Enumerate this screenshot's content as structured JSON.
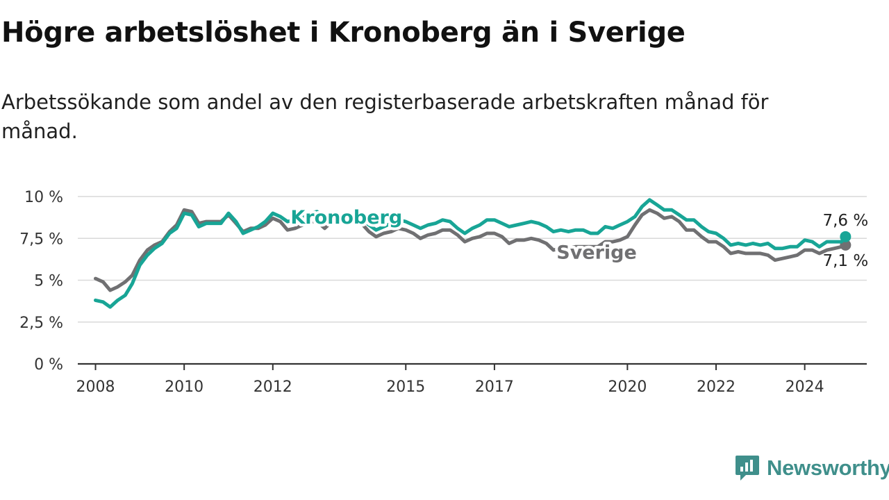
{
  "header": {
    "title": "Högre arbetslöshet i Kronoberg än i Sverige",
    "subtitle": "Arbetssökande som andel av den registerbaserade arbetskraften månad för månad."
  },
  "brand": {
    "name": "Newsworthy",
    "icon": "newsworthy-logo-icon",
    "color": "#3f8f8b"
  },
  "chart_data": {
    "type": "line",
    "title": "Högre arbetslöshet i Kronoberg än i Sverige",
    "subtitle": "Arbetssökande som andel av den registerbaserade arbetskraften månad för månad.",
    "xlabel": "",
    "ylabel": "",
    "xlim": [
      2007.6,
      2025.4
    ],
    "ylim": [
      0,
      10
    ],
    "grid": true,
    "x_ticks": [
      {
        "value": 2008,
        "label": "2008"
      },
      {
        "value": 2010,
        "label": "2010"
      },
      {
        "value": 2012,
        "label": "2012"
      },
      {
        "value": 2015,
        "label": "2015"
      },
      {
        "value": 2017,
        "label": "2017"
      },
      {
        "value": 2020,
        "label": "2020"
      },
      {
        "value": 2022,
        "label": "2022"
      },
      {
        "value": 2024,
        "label": "2024"
      }
    ],
    "y_ticks": [
      {
        "value": 0,
        "label": "0 %"
      },
      {
        "value": 2.5,
        "label": "2,5 %"
      },
      {
        "value": 5,
        "label": "5 %"
      },
      {
        "value": 7.5,
        "label": "7,5 %"
      },
      {
        "value": 10,
        "label": "10 %"
      }
    ],
    "series": [
      {
        "name": "Kronoberg",
        "color": "#18a596",
        "end_label": "7,6 %",
        "points": [
          [
            2008.0,
            3.8
          ],
          [
            2008.17,
            3.7
          ],
          [
            2008.33,
            3.4
          ],
          [
            2008.5,
            3.8
          ],
          [
            2008.67,
            4.1
          ],
          [
            2008.83,
            4.8
          ],
          [
            2009.0,
            5.9
          ],
          [
            2009.17,
            6.5
          ],
          [
            2009.33,
            6.9
          ],
          [
            2009.5,
            7.2
          ],
          [
            2009.67,
            7.8
          ],
          [
            2009.83,
            8.1
          ],
          [
            2010.0,
            9.0
          ],
          [
            2010.17,
            8.9
          ],
          [
            2010.33,
            8.2
          ],
          [
            2010.5,
            8.4
          ],
          [
            2010.67,
            8.4
          ],
          [
            2010.83,
            8.4
          ],
          [
            2011.0,
            9.0
          ],
          [
            2011.17,
            8.5
          ],
          [
            2011.33,
            7.8
          ],
          [
            2011.5,
            8.0
          ],
          [
            2011.67,
            8.2
          ],
          [
            2011.83,
            8.5
          ],
          [
            2012.0,
            9.0
          ],
          [
            2012.17,
            8.8
          ],
          [
            2012.33,
            8.5
          ],
          [
            2012.5,
            8.6
          ],
          [
            2012.67,
            8.8
          ],
          [
            2012.83,
            9.0
          ],
          [
            2013.0,
            9.1
          ],
          [
            2013.17,
            8.8
          ],
          [
            2013.33,
            8.7
          ],
          [
            2013.5,
            8.8
          ],
          [
            2013.67,
            8.8
          ],
          [
            2013.83,
            8.8
          ],
          [
            2014.0,
            8.7
          ],
          [
            2014.17,
            8.3
          ],
          [
            2014.33,
            8.0
          ],
          [
            2014.5,
            8.2
          ],
          [
            2014.67,
            8.4
          ],
          [
            2014.83,
            8.6
          ],
          [
            2015.0,
            8.5
          ],
          [
            2015.17,
            8.3
          ],
          [
            2015.33,
            8.1
          ],
          [
            2015.5,
            8.3
          ],
          [
            2015.67,
            8.4
          ],
          [
            2015.83,
            8.6
          ],
          [
            2016.0,
            8.5
          ],
          [
            2016.17,
            8.1
          ],
          [
            2016.33,
            7.8
          ],
          [
            2016.5,
            8.1
          ],
          [
            2016.67,
            8.3
          ],
          [
            2016.83,
            8.6
          ],
          [
            2017.0,
            8.6
          ],
          [
            2017.17,
            8.4
          ],
          [
            2017.33,
            8.2
          ],
          [
            2017.5,
            8.3
          ],
          [
            2017.67,
            8.4
          ],
          [
            2017.83,
            8.5
          ],
          [
            2018.0,
            8.4
          ],
          [
            2018.17,
            8.2
          ],
          [
            2018.33,
            7.9
          ],
          [
            2018.5,
            8.0
          ],
          [
            2018.67,
            7.9
          ],
          [
            2018.83,
            8.0
          ],
          [
            2019.0,
            8.0
          ],
          [
            2019.17,
            7.8
          ],
          [
            2019.33,
            7.8
          ],
          [
            2019.5,
            8.2
          ],
          [
            2019.67,
            8.1
          ],
          [
            2019.83,
            8.3
          ],
          [
            2020.0,
            8.5
          ],
          [
            2020.17,
            8.8
          ],
          [
            2020.33,
            9.4
          ],
          [
            2020.5,
            9.8
          ],
          [
            2020.67,
            9.5
          ],
          [
            2020.83,
            9.2
          ],
          [
            2021.0,
            9.2
          ],
          [
            2021.17,
            8.9
          ],
          [
            2021.33,
            8.6
          ],
          [
            2021.5,
            8.6
          ],
          [
            2021.67,
            8.2
          ],
          [
            2021.83,
            7.9
          ],
          [
            2022.0,
            7.8
          ],
          [
            2022.17,
            7.5
          ],
          [
            2022.33,
            7.1
          ],
          [
            2022.5,
            7.2
          ],
          [
            2022.67,
            7.1
          ],
          [
            2022.83,
            7.2
          ],
          [
            2023.0,
            7.1
          ],
          [
            2023.17,
            7.2
          ],
          [
            2023.33,
            6.9
          ],
          [
            2023.5,
            6.9
          ],
          [
            2023.67,
            7.0
          ],
          [
            2023.83,
            7.0
          ],
          [
            2024.0,
            7.4
          ],
          [
            2024.17,
            7.3
          ],
          [
            2024.33,
            7.0
          ],
          [
            2024.5,
            7.3
          ],
          [
            2024.67,
            7.3
          ],
          [
            2024.83,
            7.3
          ],
          [
            2024.92,
            7.6
          ]
        ]
      },
      {
        "name": "Sverige",
        "color": "#707072",
        "end_label": "7,1 %",
        "points": [
          [
            2008.0,
            5.1
          ],
          [
            2008.17,
            4.9
          ],
          [
            2008.33,
            4.4
          ],
          [
            2008.5,
            4.6
          ],
          [
            2008.67,
            4.9
          ],
          [
            2008.83,
            5.3
          ],
          [
            2009.0,
            6.2
          ],
          [
            2009.17,
            6.8
          ],
          [
            2009.33,
            7.1
          ],
          [
            2009.5,
            7.3
          ],
          [
            2009.67,
            7.9
          ],
          [
            2009.83,
            8.3
          ],
          [
            2010.0,
            9.2
          ],
          [
            2010.17,
            9.1
          ],
          [
            2010.33,
            8.4
          ],
          [
            2010.5,
            8.5
          ],
          [
            2010.67,
            8.5
          ],
          [
            2010.83,
            8.5
          ],
          [
            2011.0,
            8.9
          ],
          [
            2011.17,
            8.4
          ],
          [
            2011.33,
            7.9
          ],
          [
            2011.5,
            8.1
          ],
          [
            2011.67,
            8.1
          ],
          [
            2011.83,
            8.3
          ],
          [
            2012.0,
            8.7
          ],
          [
            2012.17,
            8.5
          ],
          [
            2012.33,
            8.0
          ],
          [
            2012.5,
            8.1
          ],
          [
            2012.67,
            8.3
          ],
          [
            2012.83,
            8.5
          ],
          [
            2013.0,
            8.5
          ],
          [
            2013.17,
            8.1
          ],
          [
            2013.33,
            8.5
          ],
          [
            2013.5,
            8.5
          ],
          [
            2013.67,
            8.5
          ],
          [
            2013.83,
            8.6
          ],
          [
            2014.0,
            8.4
          ],
          [
            2014.17,
            7.9
          ],
          [
            2014.33,
            7.6
          ],
          [
            2014.5,
            7.8
          ],
          [
            2014.67,
            7.9
          ],
          [
            2014.83,
            8.1
          ],
          [
            2015.0,
            8.0
          ],
          [
            2015.17,
            7.8
          ],
          [
            2015.33,
            7.5
          ],
          [
            2015.5,
            7.7
          ],
          [
            2015.67,
            7.8
          ],
          [
            2015.83,
            8.0
          ],
          [
            2016.0,
            8.0
          ],
          [
            2016.17,
            7.7
          ],
          [
            2016.33,
            7.3
          ],
          [
            2016.5,
            7.5
          ],
          [
            2016.67,
            7.6
          ],
          [
            2016.83,
            7.8
          ],
          [
            2017.0,
            7.8
          ],
          [
            2017.17,
            7.6
          ],
          [
            2017.33,
            7.2
          ],
          [
            2017.5,
            7.4
          ],
          [
            2017.67,
            7.4
          ],
          [
            2017.83,
            7.5
          ],
          [
            2018.0,
            7.4
          ],
          [
            2018.17,
            7.2
          ],
          [
            2018.33,
            6.8
          ],
          [
            2018.5,
            6.9
          ],
          [
            2018.67,
            6.9
          ],
          [
            2018.83,
            7.0
          ],
          [
            2019.0,
            7.0
          ],
          [
            2019.17,
            7.0
          ],
          [
            2019.33,
            7.0
          ],
          [
            2019.5,
            7.3
          ],
          [
            2019.67,
            7.3
          ],
          [
            2019.83,
            7.4
          ],
          [
            2020.0,
            7.6
          ],
          [
            2020.17,
            8.3
          ],
          [
            2020.33,
            8.9
          ],
          [
            2020.5,
            9.2
          ],
          [
            2020.67,
            9.0
          ],
          [
            2020.83,
            8.7
          ],
          [
            2021.0,
            8.8
          ],
          [
            2021.17,
            8.5
          ],
          [
            2021.33,
            8.0
          ],
          [
            2021.5,
            8.0
          ],
          [
            2021.67,
            7.6
          ],
          [
            2021.83,
            7.3
          ],
          [
            2022.0,
            7.3
          ],
          [
            2022.17,
            7.0
          ],
          [
            2022.33,
            6.6
          ],
          [
            2022.5,
            6.7
          ],
          [
            2022.67,
            6.6
          ],
          [
            2022.83,
            6.6
          ],
          [
            2023.0,
            6.6
          ],
          [
            2023.17,
            6.5
          ],
          [
            2023.33,
            6.2
          ],
          [
            2023.5,
            6.3
          ],
          [
            2023.67,
            6.4
          ],
          [
            2023.83,
            6.5
          ],
          [
            2024.0,
            6.8
          ],
          [
            2024.17,
            6.8
          ],
          [
            2024.33,
            6.6
          ],
          [
            2024.5,
            6.8
          ],
          [
            2024.67,
            6.9
          ],
          [
            2024.83,
            7.0
          ],
          [
            2024.92,
            7.1
          ]
        ]
      }
    ]
  }
}
